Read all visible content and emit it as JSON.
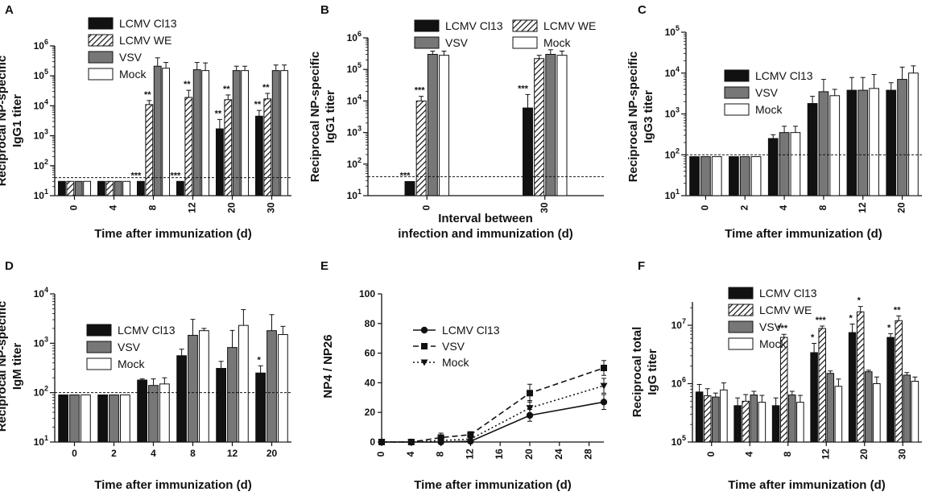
{
  "panels": [
    {
      "letter": "A",
      "type": "bar",
      "scale": "log",
      "ylim_exp": [
        1,
        6
      ],
      "ylabel": [
        "Reciprocal NP-specific",
        "IgG1 titer"
      ],
      "xlabel": [
        "Time after immunization (d)"
      ],
      "categories": [
        "0",
        "4",
        "8",
        "12",
        "20",
        "30"
      ],
      "rotate_ticks": true,
      "legend_pos": "upper-left",
      "legend_cols": 1,
      "threshold": 40,
      "series": [
        {
          "name": "LCMV Cl13",
          "style": "black",
          "values": [
            30,
            30,
            30,
            30,
            1700,
            4500
          ],
          "errors": [
            0,
            0,
            0,
            0,
            1800,
            2500
          ]
        },
        {
          "name": "LCMV WE",
          "style": "hatch",
          "values": [
            30,
            30,
            11000,
            19000,
            16000,
            17000
          ],
          "errors": [
            0,
            0,
            4000,
            14000,
            7000,
            9000
          ]
        },
        {
          "name": "VSV",
          "style": "gray",
          "values": [
            30,
            30,
            210000,
            160000,
            150000,
            150000
          ],
          "errors": [
            0,
            0,
            190000,
            120000,
            60000,
            80000
          ]
        },
        {
          "name": "Mock",
          "style": "white",
          "values": [
            30,
            30,
            180000,
            150000,
            150000,
            150000
          ],
          "errors": [
            0,
            0,
            100000,
            120000,
            60000,
            80000
          ]
        }
      ],
      "annotations": [
        {
          "cat": 2,
          "series": 0,
          "text": "***"
        },
        {
          "cat": 2,
          "series": 1,
          "text": "**"
        },
        {
          "cat": 3,
          "series": 0,
          "text": "***"
        },
        {
          "cat": 3,
          "series": 1,
          "text": "**"
        },
        {
          "cat": 4,
          "series": 0,
          "text": "**"
        },
        {
          "cat": 4,
          "series": 1,
          "text": "**"
        },
        {
          "cat": 5,
          "series": 0,
          "text": "**"
        },
        {
          "cat": 5,
          "series": 1,
          "text": "**"
        }
      ]
    },
    {
      "letter": "B",
      "type": "bar",
      "scale": "log",
      "ylim_exp": [
        1,
        6
      ],
      "ylabel": [
        "Reciprocal NP-specific",
        "IgG1 titer"
      ],
      "xlabel": [
        "Interval between",
        "infection and immunization (d)"
      ],
      "categories": [
        "0",
        "30"
      ],
      "rotate_ticks": true,
      "legend_pos": "top",
      "legend_cols": 2,
      "threshold": 40,
      "series": [
        {
          "name": "LCMV Cl13",
          "style": "black",
          "values": [
            28,
            6000
          ],
          "errors": [
            0,
            10000
          ]
        },
        {
          "name": "LCMV WE",
          "style": "hatch",
          "values": [
            10000,
            220000
          ],
          "errors": [
            4000,
            60000
          ]
        },
        {
          "name": "VSV",
          "style": "gray",
          "values": [
            300000,
            300000
          ],
          "errors": [
            80000,
            120000
          ]
        },
        {
          "name": "Mock",
          "style": "white",
          "values": [
            280000,
            280000
          ],
          "errors": [
            100000,
            100000
          ]
        }
      ],
      "annotations": [
        {
          "cat": 0,
          "series": 0,
          "text": "***"
        },
        {
          "cat": 0,
          "series": 1,
          "text": "***"
        },
        {
          "cat": 1,
          "series": 0,
          "text": "***"
        }
      ]
    },
    {
      "letter": "C",
      "type": "bar",
      "scale": "log",
      "ylim_exp": [
        1,
        5
      ],
      "ylabel": [
        "Reciprocal NP-specific",
        "IgG3 titer"
      ],
      "xlabel": [
        "Time after immunization (d)"
      ],
      "categories": [
        "0",
        "2",
        "4",
        "8",
        "12",
        "20"
      ],
      "rotate_ticks": true,
      "legend_pos": "upper-left",
      "legend_cols": 1,
      "threshold": 100,
      "series": [
        {
          "name": "LCMV Cl13",
          "style": "black",
          "values": [
            90,
            90,
            250,
            1800,
            3800,
            3800
          ],
          "errors": [
            0,
            0,
            60,
            900,
            4000,
            2000
          ]
        },
        {
          "name": "VSV",
          "style": "gray",
          "values": [
            90,
            90,
            350,
            3500,
            3800,
            7000
          ],
          "errors": [
            0,
            0,
            150,
            3500,
            4000,
            7000
          ]
        },
        {
          "name": "Mock",
          "style": "white",
          "values": [
            90,
            90,
            350,
            2800,
            4200,
            10000
          ],
          "errors": [
            0,
            0,
            150,
            1200,
            5000,
            5000
          ]
        }
      ],
      "annotations": []
    },
    {
      "letter": "D",
      "type": "bar",
      "scale": "log",
      "ylim_exp": [
        1,
        4
      ],
      "ylabel": [
        "Reciprocal NP-specific",
        "IgM titer"
      ],
      "xlabel": [
        "Time after immunization (d)"
      ],
      "categories": [
        "0",
        "2",
        "4",
        "8",
        "12",
        "20"
      ],
      "rotate_ticks": false,
      "legend_pos": "left",
      "legend_cols": 1,
      "threshold": 100,
      "series": [
        {
          "name": "LCMV Cl13",
          "style": "black",
          "values": [
            90,
            90,
            180,
            560,
            310,
            250
          ],
          "errors": [
            0,
            0,
            10,
            200,
            120,
            100
          ]
        },
        {
          "name": "VSV",
          "style": "gray",
          "values": [
            90,
            90,
            140,
            1450,
            820,
            1800
          ],
          "errors": [
            0,
            0,
            50,
            1600,
            1000,
            2000
          ]
        },
        {
          "name": "Mock",
          "style": "white",
          "values": [
            90,
            90,
            150,
            1800,
            2300,
            1500
          ],
          "errors": [
            0,
            0,
            50,
            200,
            2500,
            700
          ]
        }
      ],
      "annotations": [
        {
          "cat": 5,
          "series": 0,
          "text": "*"
        }
      ]
    },
    {
      "letter": "E",
      "type": "line",
      "scale": "linear",
      "ylim": [
        0,
        100
      ],
      "yticks": [
        0,
        20,
        40,
        60,
        80,
        100
      ],
      "xlim": [
        0,
        30
      ],
      "xticks": [
        0,
        4,
        8,
        12,
        16,
        20,
        24,
        28
      ],
      "ylabel": [
        "NP4 / NP26"
      ],
      "xlabel": [
        "Time after immunization (d)"
      ],
      "rotate_ticks": true,
      "legend_pos": "center-left",
      "x": [
        0,
        4,
        8,
        12,
        20,
        30
      ],
      "series": [
        {
          "name": "LCMV Cl13",
          "marker": "circle",
          "dash": "solid",
          "values": [
            0,
            0,
            0,
            0.5,
            18,
            27
          ],
          "errors": [
            0,
            0,
            0.5,
            1,
            4,
            5
          ]
        },
        {
          "name": "VSV",
          "marker": "square",
          "dash": "dashed",
          "values": [
            0,
            0,
            3,
            5,
            33,
            50
          ],
          "errors": [
            0,
            0,
            3,
            2,
            6,
            5
          ]
        },
        {
          "name": "Mock",
          "marker": "triangle-down",
          "dash": "dotted",
          "values": [
            0,
            0,
            1,
            2,
            23,
            38
          ],
          "errors": [
            0,
            0,
            1,
            2,
            5,
            5
          ]
        }
      ]
    },
    {
      "letter": "F",
      "type": "bar",
      "scale": "log",
      "ylim_exp": [
        5,
        7.4
      ],
      "ylabel": [
        "Reciprocal total",
        "IgG titer"
      ],
      "xlabel": [
        "Time after immunization (d)"
      ],
      "categories": [
        "0",
        "4",
        "8",
        "12",
        "20",
        "30"
      ],
      "rotate_ticks": true,
      "legend_pos": "upper-left",
      "legend_cols": 1,
      "threshold": null,
      "series": [
        {
          "name": "LCMV Cl13",
          "style": "black",
          "values": [
            720000,
            420000,
            420000,
            3400000,
            7500000,
            6200000
          ],
          "errors": [
            250000,
            150000,
            150000,
            1500000,
            3000000,
            1000000
          ]
        },
        {
          "name": "LCMV WE",
          "style": "hatch",
          "values": [
            620000,
            500000,
            6200000,
            8800000,
            17000000,
            12000000
          ],
          "errors": [
            200000,
            150000,
            800000,
            900000,
            4000000,
            2500000
          ]
        },
        {
          "name": "VSV",
          "style": "gray",
          "values": [
            590000,
            640000,
            640000,
            1500000,
            1600000,
            1400000
          ],
          "errors": [
            100000,
            100000,
            100000,
            150000,
            100000,
            150000
          ]
        },
        {
          "name": "Mock",
          "style": "white",
          "values": [
            780000,
            480000,
            480000,
            900000,
            1000000,
            1100000
          ],
          "errors": [
            250000,
            150000,
            150000,
            300000,
            300000,
            200000
          ]
        }
      ],
      "annotations": [
        {
          "cat": 2,
          "series": 1,
          "text": "***"
        },
        {
          "cat": 3,
          "series": 0,
          "text": "*"
        },
        {
          "cat": 3,
          "series": 1,
          "text": "***"
        },
        {
          "cat": 4,
          "series": 0,
          "text": "*"
        },
        {
          "cat": 4,
          "series": 1,
          "text": "*"
        },
        {
          "cat": 5,
          "series": 0,
          "text": "*"
        },
        {
          "cat": 5,
          "series": 1,
          "text": "**"
        }
      ]
    }
  ],
  "chart_data": [
    {
      "panel": "A",
      "type": "bar",
      "title": "",
      "xlabel": "Time after immunization (d)",
      "ylabel": "Reciprocal NP-specific IgG1 titer",
      "ylim": [
        10,
        1000000
      ],
      "categories": [
        "0",
        "4",
        "8",
        "12",
        "20",
        "30"
      ],
      "series": [
        {
          "name": "LCMV Cl13",
          "values": [
            30,
            30,
            30,
            30,
            1700,
            4500
          ]
        },
        {
          "name": "LCMV WE",
          "values": [
            30,
            30,
            11000,
            19000,
            16000,
            17000
          ]
        },
        {
          "name": "VSV",
          "values": [
            30,
            30,
            210000,
            160000,
            150000,
            150000
          ]
        },
        {
          "name": "Mock",
          "values": [
            30,
            30,
            180000,
            150000,
            150000,
            150000
          ]
        }
      ]
    },
    {
      "panel": "B",
      "type": "bar",
      "title": "",
      "xlabel": "Interval between infection and immunization (d)",
      "ylabel": "Reciprocal NP-specific IgG1 titer",
      "ylim": [
        10,
        1000000
      ],
      "categories": [
        "0",
        "30"
      ],
      "series": [
        {
          "name": "LCMV Cl13",
          "values": [
            28,
            6000
          ]
        },
        {
          "name": "LCMV WE",
          "values": [
            10000,
            220000
          ]
        },
        {
          "name": "VSV",
          "values": [
            300000,
            300000
          ]
        },
        {
          "name": "Mock",
          "values": [
            280000,
            280000
          ]
        }
      ]
    },
    {
      "panel": "C",
      "type": "bar",
      "title": "",
      "xlabel": "Time after immunization (d)",
      "ylabel": "Reciprocal NP-specific IgG3 titer",
      "ylim": [
        10,
        100000
      ],
      "categories": [
        "0",
        "2",
        "4",
        "8",
        "12",
        "20"
      ],
      "series": [
        {
          "name": "LCMV Cl13",
          "values": [
            90,
            90,
            250,
            1800,
            3800,
            3800
          ]
        },
        {
          "name": "VSV",
          "values": [
            90,
            90,
            350,
            3500,
            3800,
            7000
          ]
        },
        {
          "name": "Mock",
          "values": [
            90,
            90,
            350,
            2800,
            4200,
            10000
          ]
        }
      ]
    },
    {
      "panel": "D",
      "type": "bar",
      "title": "",
      "xlabel": "Time after immunization (d)",
      "ylabel": "Reciprocal NP-specific IgM titer",
      "ylim": [
        10,
        10000
      ],
      "categories": [
        "0",
        "2",
        "4",
        "8",
        "12",
        "20"
      ],
      "series": [
        {
          "name": "LCMV Cl13",
          "values": [
            90,
            90,
            180,
            560,
            310,
            250
          ]
        },
        {
          "name": "VSV",
          "values": [
            90,
            90,
            140,
            1450,
            820,
            1800
          ]
        },
        {
          "name": "Mock",
          "values": [
            90,
            90,
            150,
            1800,
            2300,
            1500
          ]
        }
      ]
    },
    {
      "panel": "E",
      "type": "line",
      "title": "",
      "xlabel": "Time after immunization (d)",
      "ylabel": "NP4 / NP26",
      "ylim": [
        0,
        100
      ],
      "x": [
        0,
        4,
        8,
        12,
        20,
        30
      ],
      "series": [
        {
          "name": "LCMV Cl13",
          "values": [
            0,
            0,
            0,
            0.5,
            18,
            27
          ]
        },
        {
          "name": "VSV",
          "values": [
            0,
            0,
            3,
            5,
            33,
            50
          ]
        },
        {
          "name": "Mock",
          "values": [
            0,
            0,
            1,
            2,
            23,
            38
          ]
        }
      ]
    },
    {
      "panel": "F",
      "type": "bar",
      "title": "",
      "xlabel": "Time after immunization (d)",
      "ylabel": "Reciprocal total IgG titer",
      "ylim": [
        100000,
        25000000
      ],
      "categories": [
        "0",
        "4",
        "8",
        "12",
        "20",
        "30"
      ],
      "series": [
        {
          "name": "LCMV Cl13",
          "values": [
            720000,
            420000,
            420000,
            3400000,
            7500000,
            6200000
          ]
        },
        {
          "name": "LCMV WE",
          "values": [
            620000,
            500000,
            6200000,
            8800000,
            17000000,
            12000000
          ]
        },
        {
          "name": "VSV",
          "values": [
            590000,
            640000,
            640000,
            1500000,
            1600000,
            1400000
          ]
        },
        {
          "name": "Mock",
          "values": [
            780000,
            480000,
            480000,
            900000,
            1000000,
            1100000
          ]
        }
      ]
    }
  ]
}
